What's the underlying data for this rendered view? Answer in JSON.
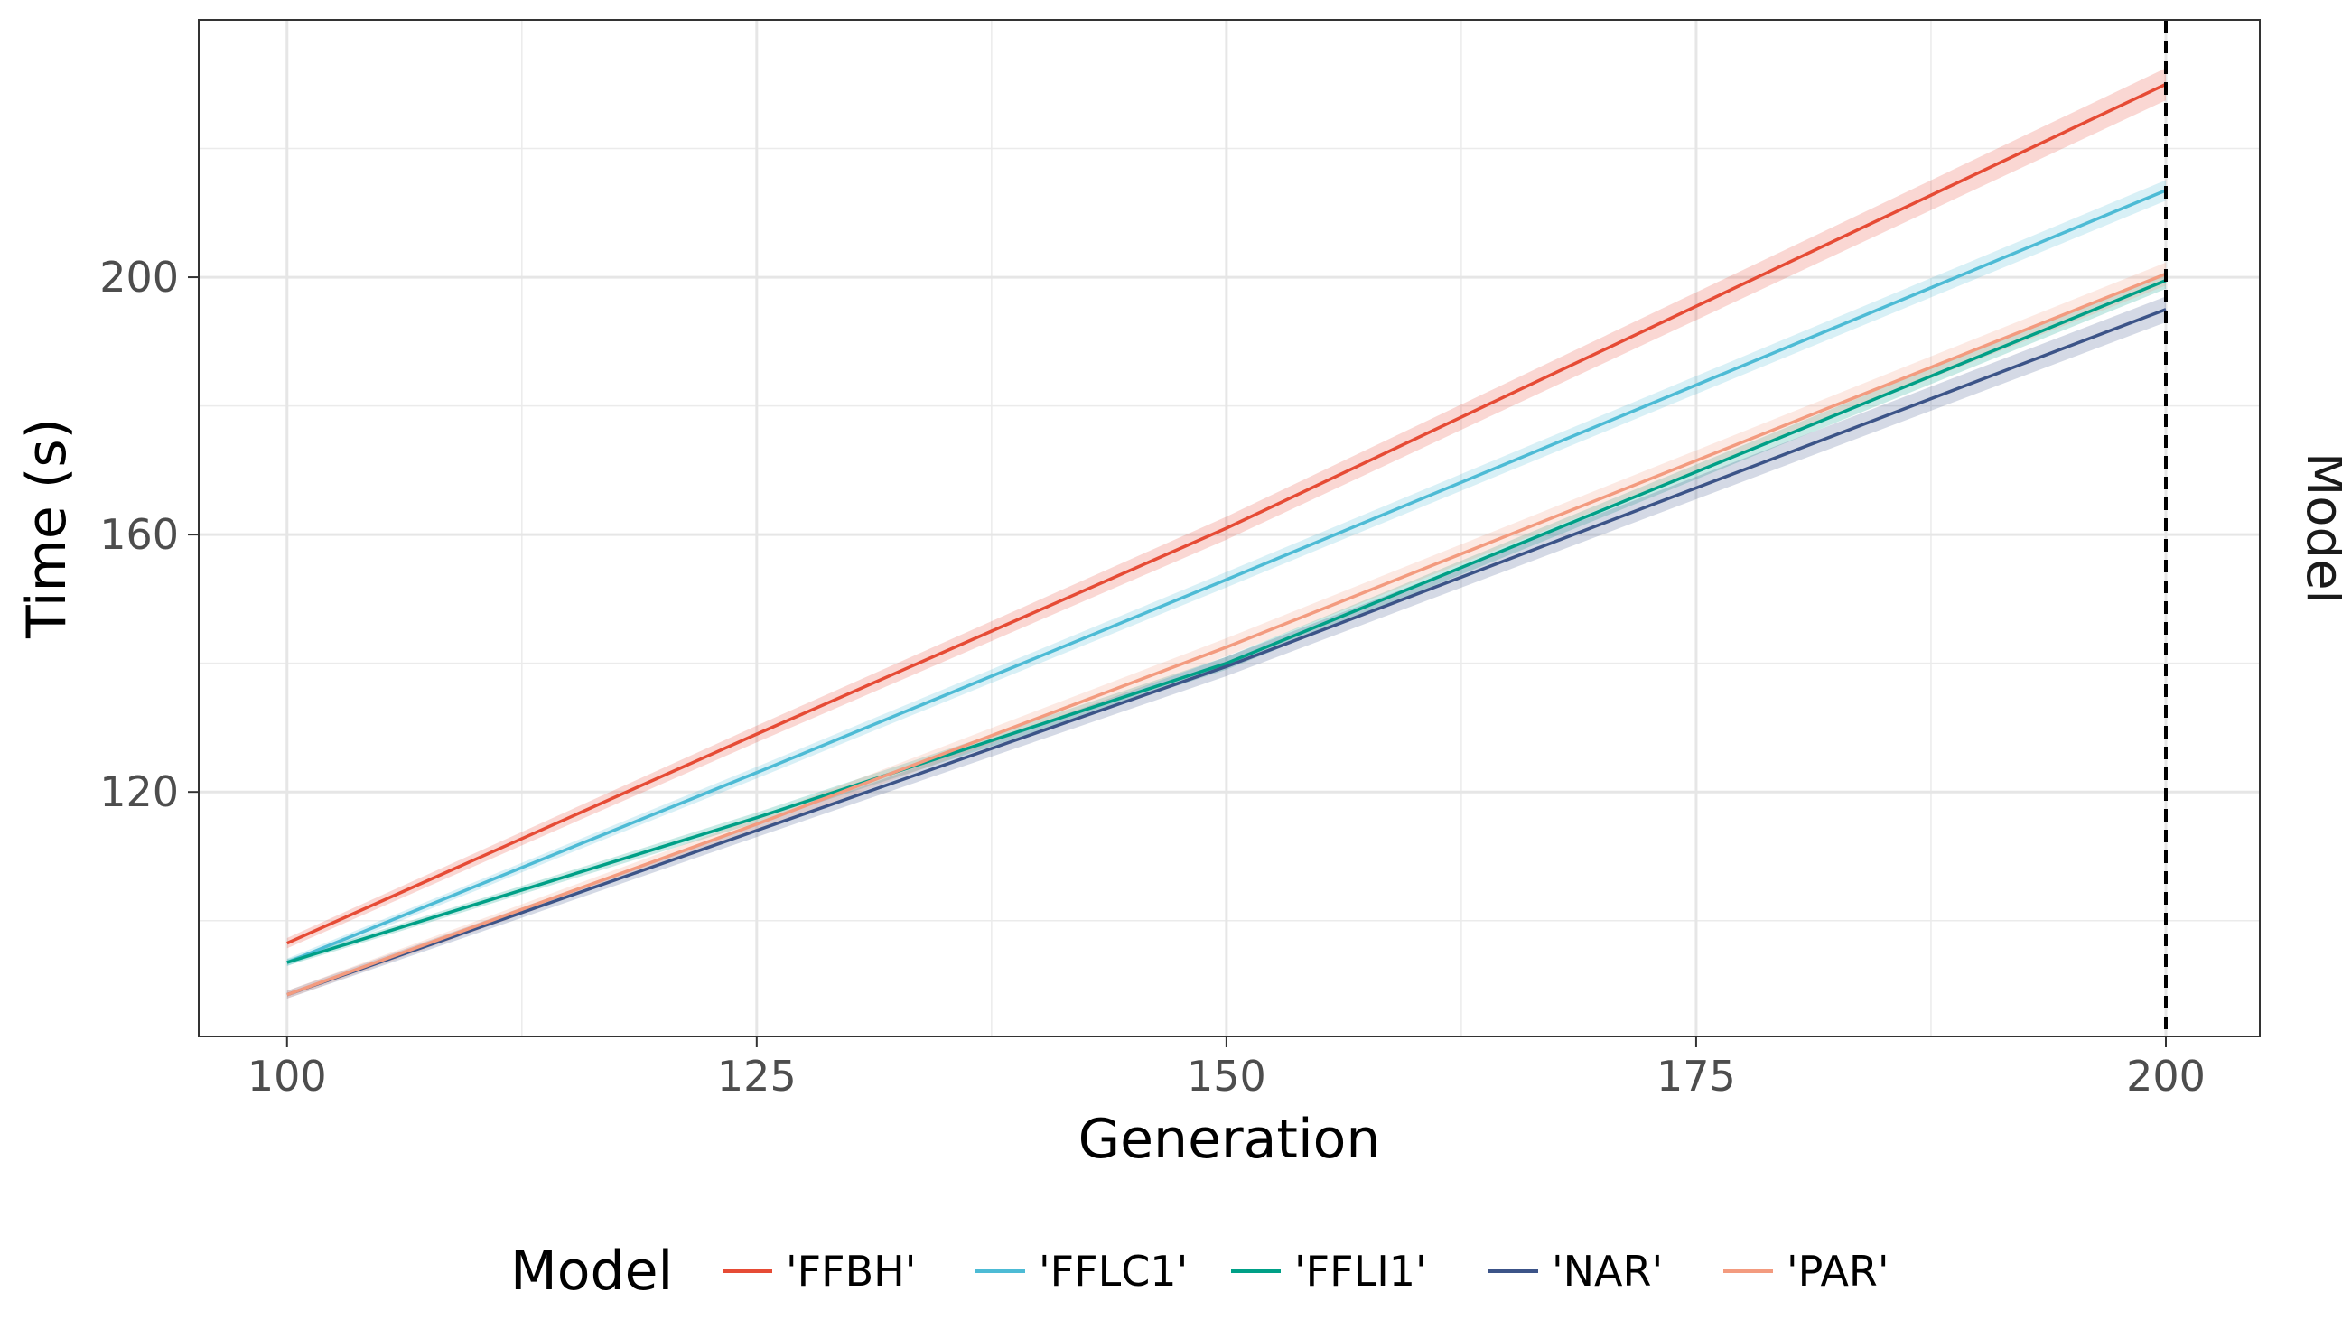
{
  "chart_data": {
    "type": "line",
    "title": "",
    "xlabel": "Generation",
    "ylabel": "Time (s)",
    "facet_label": "Model",
    "xlim": [
      95.3,
      205
    ],
    "ylim": [
      82,
      240
    ],
    "x_ticks": [
      100,
      125,
      150,
      175,
      200
    ],
    "y_ticks": [
      120,
      160,
      200
    ],
    "x_minor_ticks": [
      112.5,
      137.5,
      162.5,
      187.5
    ],
    "y_minor_ticks": [
      100,
      140,
      180,
      220
    ],
    "grid": true,
    "reference_line": {
      "x": 200,
      "style": "dashed",
      "color": "#000000"
    },
    "legend": {
      "title": "Model",
      "position": "bottom"
    },
    "x": [
      100,
      125,
      150,
      200
    ],
    "series": [
      {
        "name": "'FFBH'",
        "color": "#E64B35",
        "values": [
          96.5,
          129,
          161,
          230
        ],
        "band": [
          0.8,
          1.3,
          1.8,
          2.5
        ]
      },
      {
        "name": "'FFLC1'",
        "color": "#4DBBD5",
        "values": [
          93.5,
          123,
          153,
          213.5
        ],
        "band": [
          0.6,
          0.9,
          1.2,
          1.6
        ]
      },
      {
        "name": "'FFLI1'",
        "color": "#00A087",
        "values": [
          93.5,
          116,
          140,
          199.5
        ],
        "band": [
          0.5,
          0.8,
          1.0,
          1.3
        ]
      },
      {
        "name": "'NAR'",
        "color": "#3C5488",
        "values": [
          88.5,
          114,
          139.5,
          195
        ],
        "band": [
          0.6,
          1.0,
          1.5,
          2.0
        ]
      },
      {
        "name": "'PAR'",
        "color": "#F39B7F",
        "values": [
          88.5,
          115,
          142.5,
          200.5
        ],
        "band": [
          0.6,
          1.0,
          1.4,
          1.8
        ]
      }
    ]
  }
}
